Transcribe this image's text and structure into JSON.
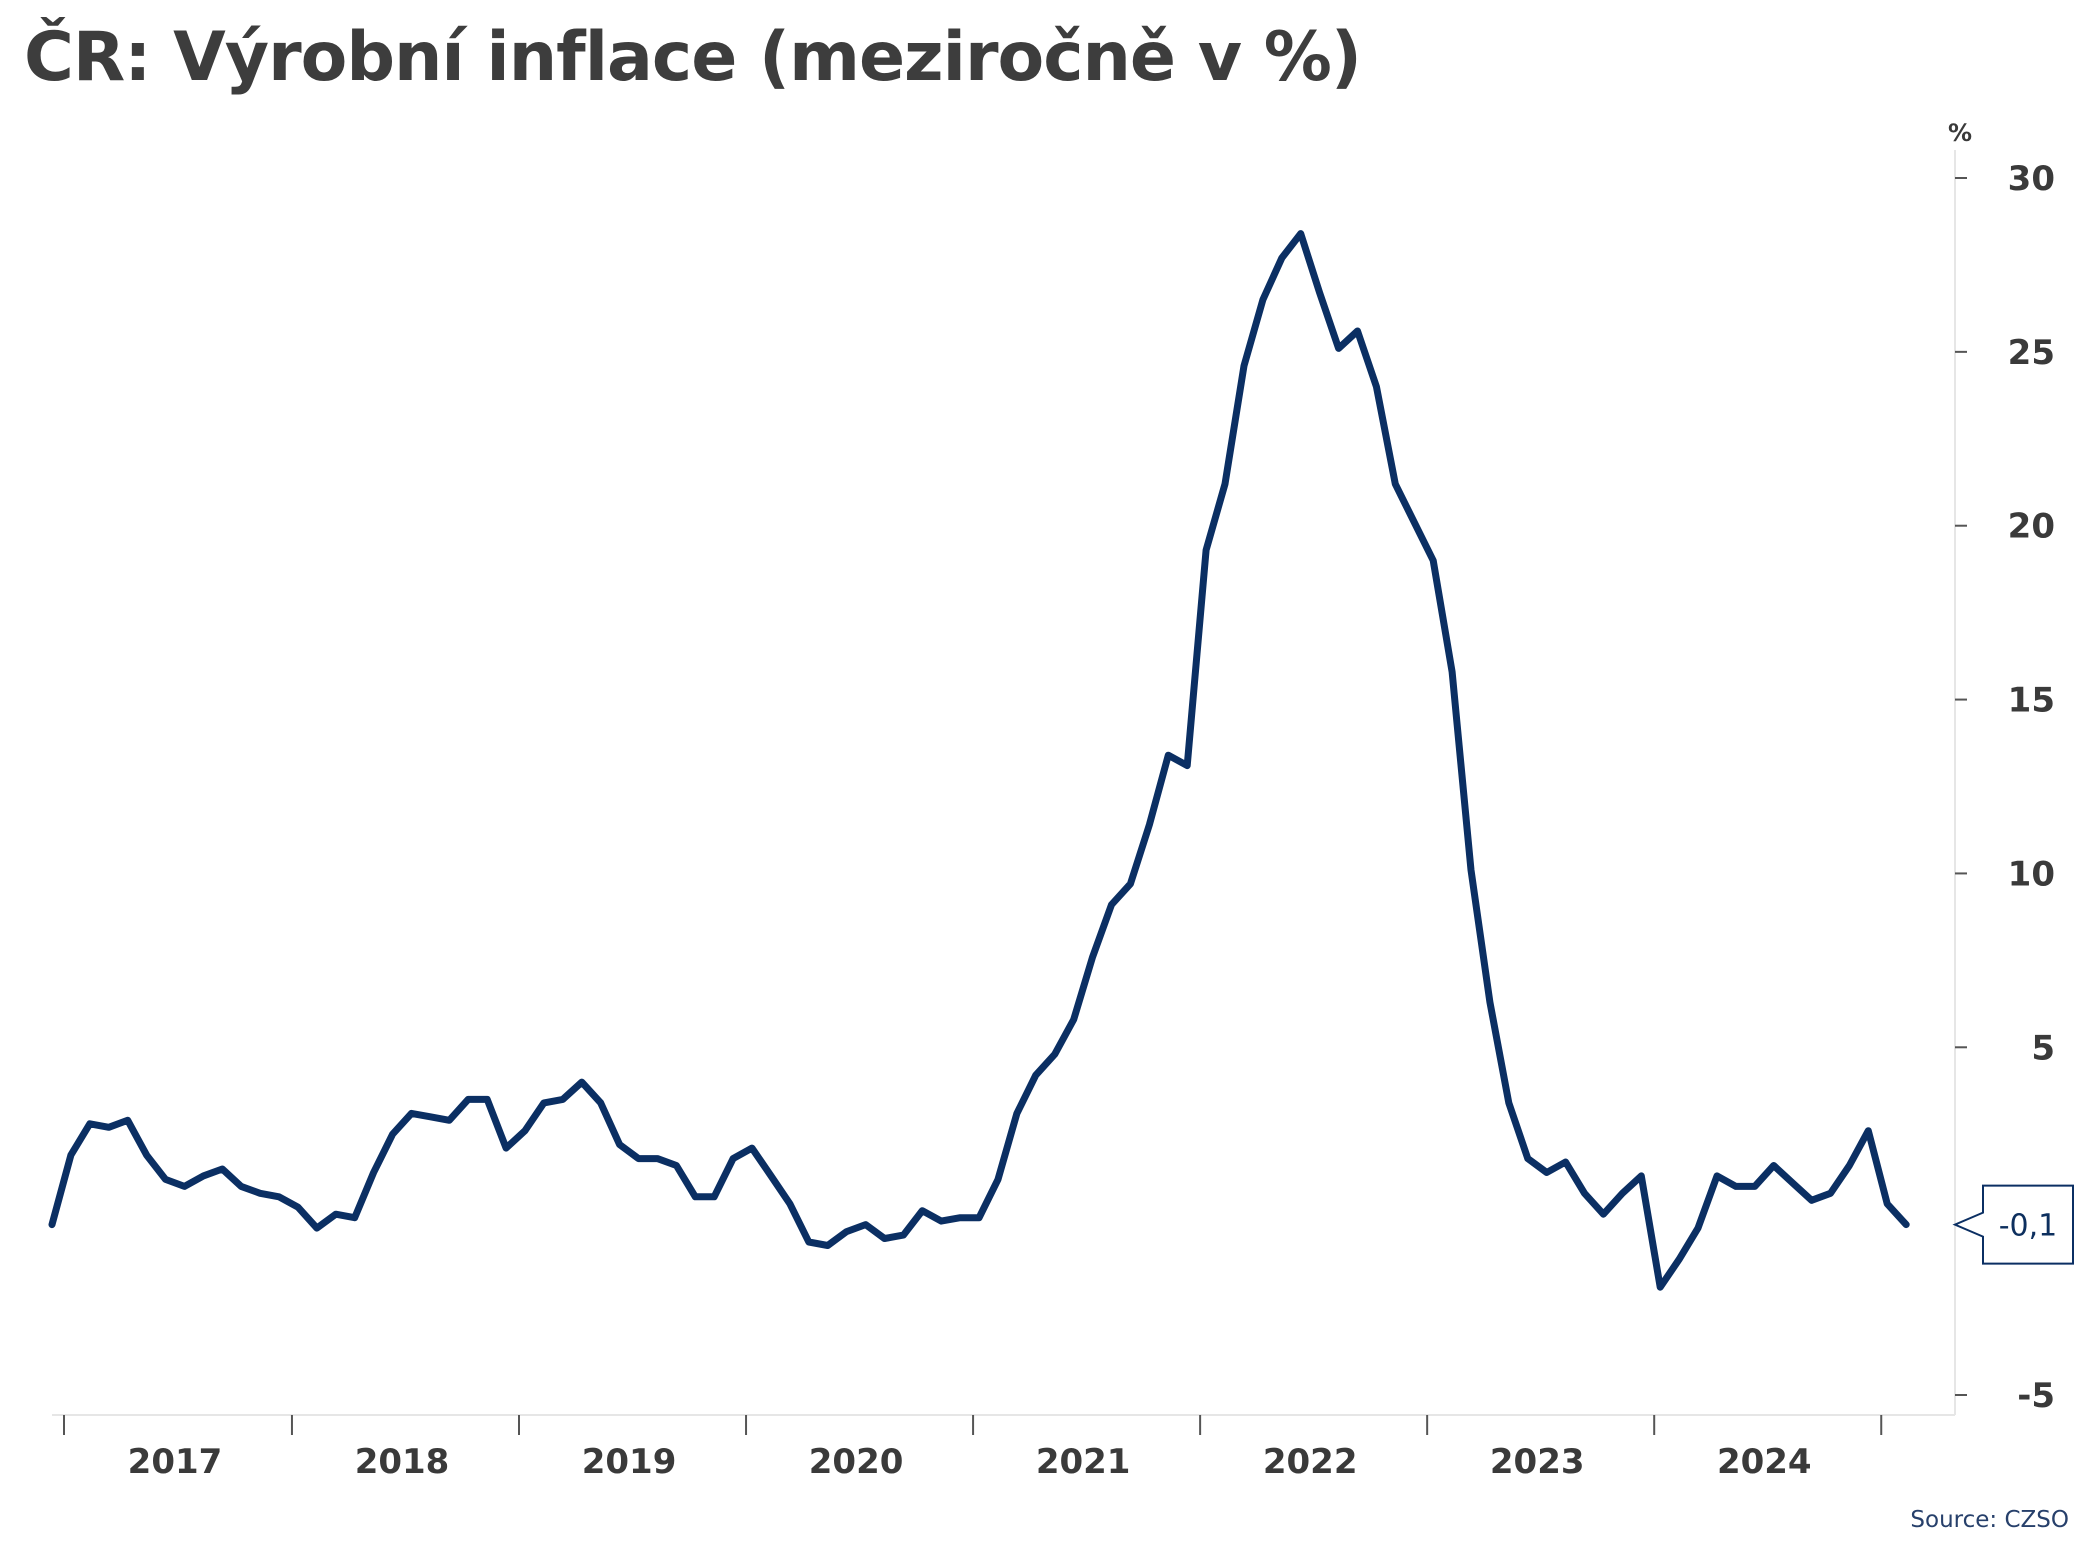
{
  "title": "ČR: Výrobní inflace (meziročně v %)",
  "source": "Source: CZSO",
  "colors": {
    "line": "#0b2f63",
    "axis": "#555555",
    "text": "#3a3a3a"
  },
  "chart_data": {
    "type": "line",
    "title": "ČR: Výrobní inflace (meziročně v %)",
    "ylabel": "%",
    "y_axis_position": "right",
    "ylim": [
      -5,
      30
    ],
    "yticks": [
      -5,
      5,
      10,
      15,
      20,
      25,
      30
    ],
    "grid": false,
    "x_labels": [
      "2017",
      "2018",
      "2019",
      "2020",
      "2021",
      "2022",
      "2023",
      "2024"
    ],
    "x_start": "2016-12",
    "series": [
      {
        "values": [
          -0.1,
          1.9,
          2.8,
          2.7,
          2.9,
          1.9,
          1.2,
          1.0,
          1.3,
          1.5,
          1.0,
          0.8,
          0.7,
          0.4,
          -0.2,
          0.2,
          0.1,
          1.4,
          2.5,
          3.1,
          3.0,
          2.9,
          3.5,
          3.5,
          2.1,
          2.6,
          3.4,
          3.5,
          4.0,
          3.4,
          2.2,
          1.8,
          1.8,
          1.6,
          0.7,
          0.7,
          1.8,
          2.1,
          1.3,
          0.5,
          -0.6,
          -0.7,
          -0.3,
          -0.1,
          -0.5,
          -0.4,
          0.3,
          0.0,
          0.1,
          0.1,
          1.2,
          3.1,
          4.2,
          4.8,
          5.8,
          7.6,
          9.1,
          9.7,
          11.4,
          13.4,
          13.1,
          19.3,
          21.2,
          24.6,
          26.5,
          27.7,
          28.4,
          26.7,
          25.1,
          25.6,
          24.0,
          21.2,
          20.1,
          19.0,
          15.8,
          10.1,
          6.3,
          3.4,
          1.8,
          1.4,
          1.7,
          0.8,
          0.2,
          0.8,
          1.3,
          -1.9,
          -1.1,
          -0.2,
          1.3,
          1.0,
          1.0,
          1.6,
          1.1,
          0.6,
          0.8,
          1.6,
          2.6,
          0.5,
          -0.1
        ]
      }
    ],
    "annotations": [
      {
        "text": "-0,1",
        "value": -0.1
      }
    ]
  }
}
